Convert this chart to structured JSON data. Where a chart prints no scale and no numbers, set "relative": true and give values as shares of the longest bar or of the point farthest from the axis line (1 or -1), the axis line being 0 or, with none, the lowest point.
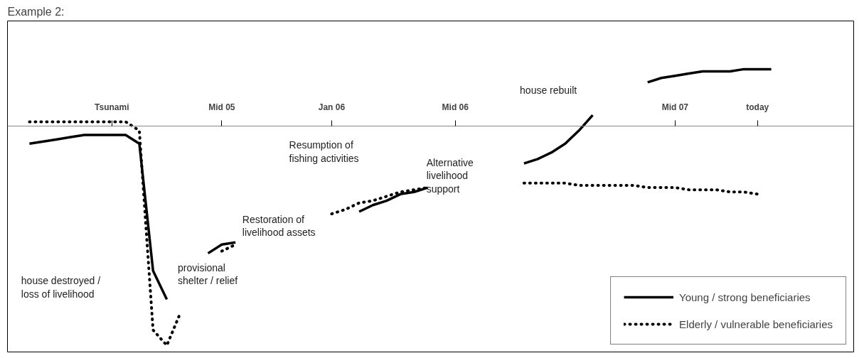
{
  "chart_data": {
    "type": "line",
    "title": "Example 2:",
    "relative": true,
    "categories": [
      null,
      null,
      null,
      null,
      null,
      null,
      "Tsunami",
      null,
      null,
      null,
      null,
      null,
      null,
      null,
      "Mid 05",
      null,
      null,
      null,
      null,
      null,
      null,
      null,
      "Jan 06",
      null,
      null,
      null,
      null,
      null,
      null,
      null,
      null,
      "Mid 06",
      null,
      null,
      null,
      null,
      null,
      null,
      null,
      null,
      null,
      null,
      null,
      null,
      null,
      null,
      null,
      "Mid 07",
      null,
      null,
      null,
      null,
      null,
      "today",
      null
    ],
    "series": [
      {
        "name": "Young / strong beneficiaries",
        "color": "#000000",
        "line_style": "solid",
        "values": [
          -0.08,
          -0.07,
          -0.06,
          -0.05,
          -0.04,
          -0.04,
          -0.04,
          -0.04,
          -0.08,
          -0.66,
          -0.79,
          null,
          null,
          -0.58,
          -0.54,
          -0.53,
          null,
          null,
          null,
          null,
          null,
          null,
          null,
          null,
          -0.39,
          -0.36,
          -0.34,
          -0.31,
          -0.3,
          -0.28,
          null,
          null,
          null,
          null,
          null,
          null,
          -0.17,
          -0.15,
          -0.12,
          -0.08,
          -0.02,
          0.05,
          null,
          null,
          null,
          0.2,
          0.22,
          0.23,
          0.24,
          0.25,
          0.25,
          0.25,
          0.26,
          0.26,
          0.26
        ]
      },
      {
        "name": "Elderly / vulnerable beneficiaries",
        "color": "#000000",
        "line_style": "dotted",
        "values": [
          0.02,
          0.02,
          0.02,
          0.02,
          0.02,
          0.02,
          0.02,
          0.02,
          -0.02,
          -0.93,
          -1.0,
          -0.85,
          null,
          null,
          -0.57,
          -0.54,
          null,
          null,
          null,
          null,
          null,
          null,
          -0.4,
          -0.38,
          -0.35,
          -0.34,
          -0.32,
          -0.3,
          -0.29,
          -0.28,
          null,
          null,
          null,
          null,
          null,
          null,
          -0.26,
          -0.26,
          -0.26,
          -0.26,
          -0.27,
          -0.27,
          -0.27,
          -0.27,
          -0.27,
          -0.28,
          -0.28,
          -0.28,
          -0.29,
          -0.29,
          -0.29,
          -0.3,
          -0.3,
          -0.31,
          null
        ]
      }
    ],
    "annotations": [
      "house destroyed /\nloss of livelihood",
      "provisional\nshelter / relief",
      "Restoration of\nlivelihood assets",
      "Resumption of\nfishing activities",
      "Alternative\nlivelihood\nsupport",
      "house rebuilt"
    ],
    "legend": "bottom right"
  }
}
